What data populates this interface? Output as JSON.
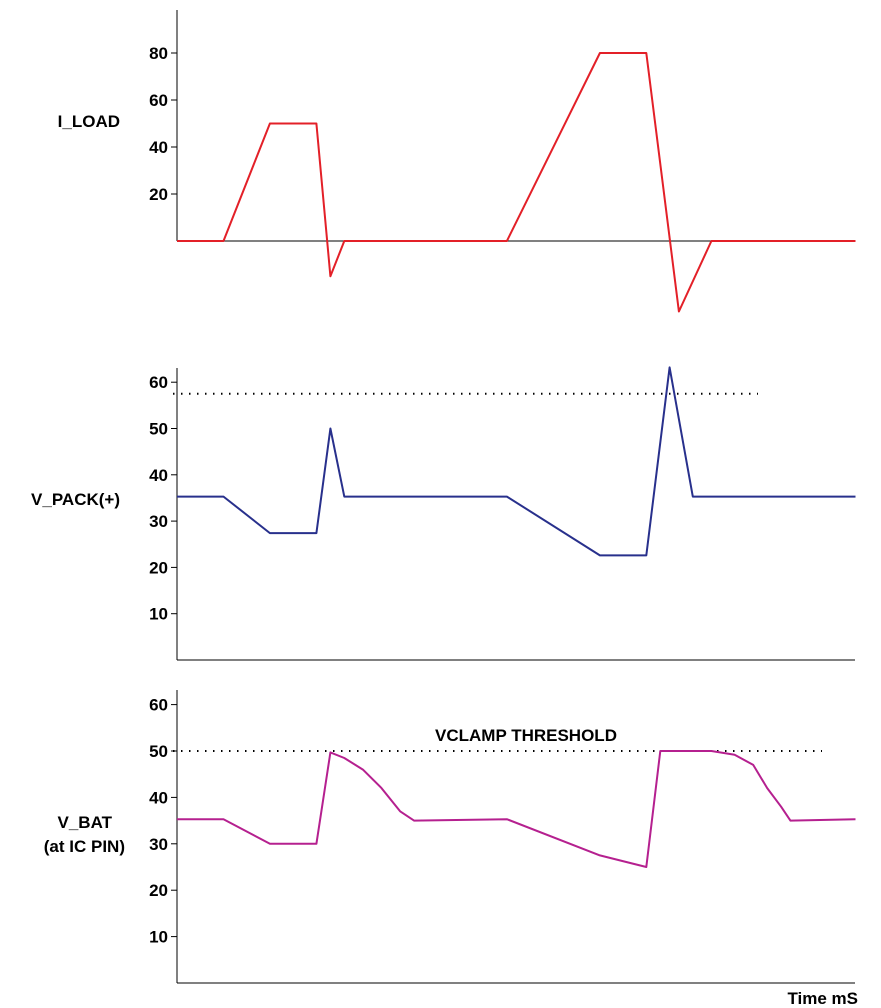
{
  "chart_data": [
    {
      "type": "line",
      "ylabel": "I_LOAD",
      "yticks": [
        20,
        40,
        60,
        80
      ],
      "ylim": [
        -30,
        100
      ],
      "zero_line": true,
      "color": "#e32028",
      "series": [
        {
          "x": [
            0,
            10,
            20,
            30,
            33,
            36,
            71,
            91,
            101,
            108,
            115,
            146
          ],
          "values": [
            0,
            0,
            50,
            50,
            -15,
            0,
            0,
            80,
            80,
            -30,
            0,
            0
          ]
        }
      ]
    },
    {
      "type": "line",
      "ylabel": "V_PACK(+)",
      "yticks": [
        10,
        20,
        30,
        40,
        50,
        60
      ],
      "ylim": [
        0,
        65
      ],
      "threshold": 57.5,
      "color": "#28308c",
      "series": [
        {
          "x": [
            0,
            10,
            20,
            30,
            33,
            36,
            71,
            91,
            101,
            106,
            111,
            146
          ],
          "values": [
            35.3,
            35.3,
            27.4,
            27.4,
            50,
            35.3,
            35.3,
            22.6,
            22.6,
            63.2,
            35.3,
            35.3
          ]
        }
      ]
    },
    {
      "type": "line",
      "ylabel": "V_BAT",
      "ylabel2": "(at IC PIN)",
      "yticks": [
        10,
        20,
        30,
        40,
        50,
        60
      ],
      "ylim": [
        0,
        65
      ],
      "threshold": 50,
      "threshold_label": "VCLAMP THRESHOLD",
      "xlabel": "Time mS",
      "color": "#b5208f",
      "series": [
        {
          "x": [
            0,
            10,
            20,
            30,
            33,
            36,
            40,
            44,
            48,
            51,
            71,
            91,
            101,
            104,
            115,
            120,
            124,
            127,
            130,
            132,
            146
          ],
          "values": [
            35.3,
            35.3,
            30,
            30,
            49.7,
            48.5,
            46,
            42,
            37,
            35,
            35.3,
            27.5,
            25,
            50,
            50,
            49.2,
            47,
            42,
            38,
            35,
            35.3
          ]
        }
      ]
    }
  ]
}
